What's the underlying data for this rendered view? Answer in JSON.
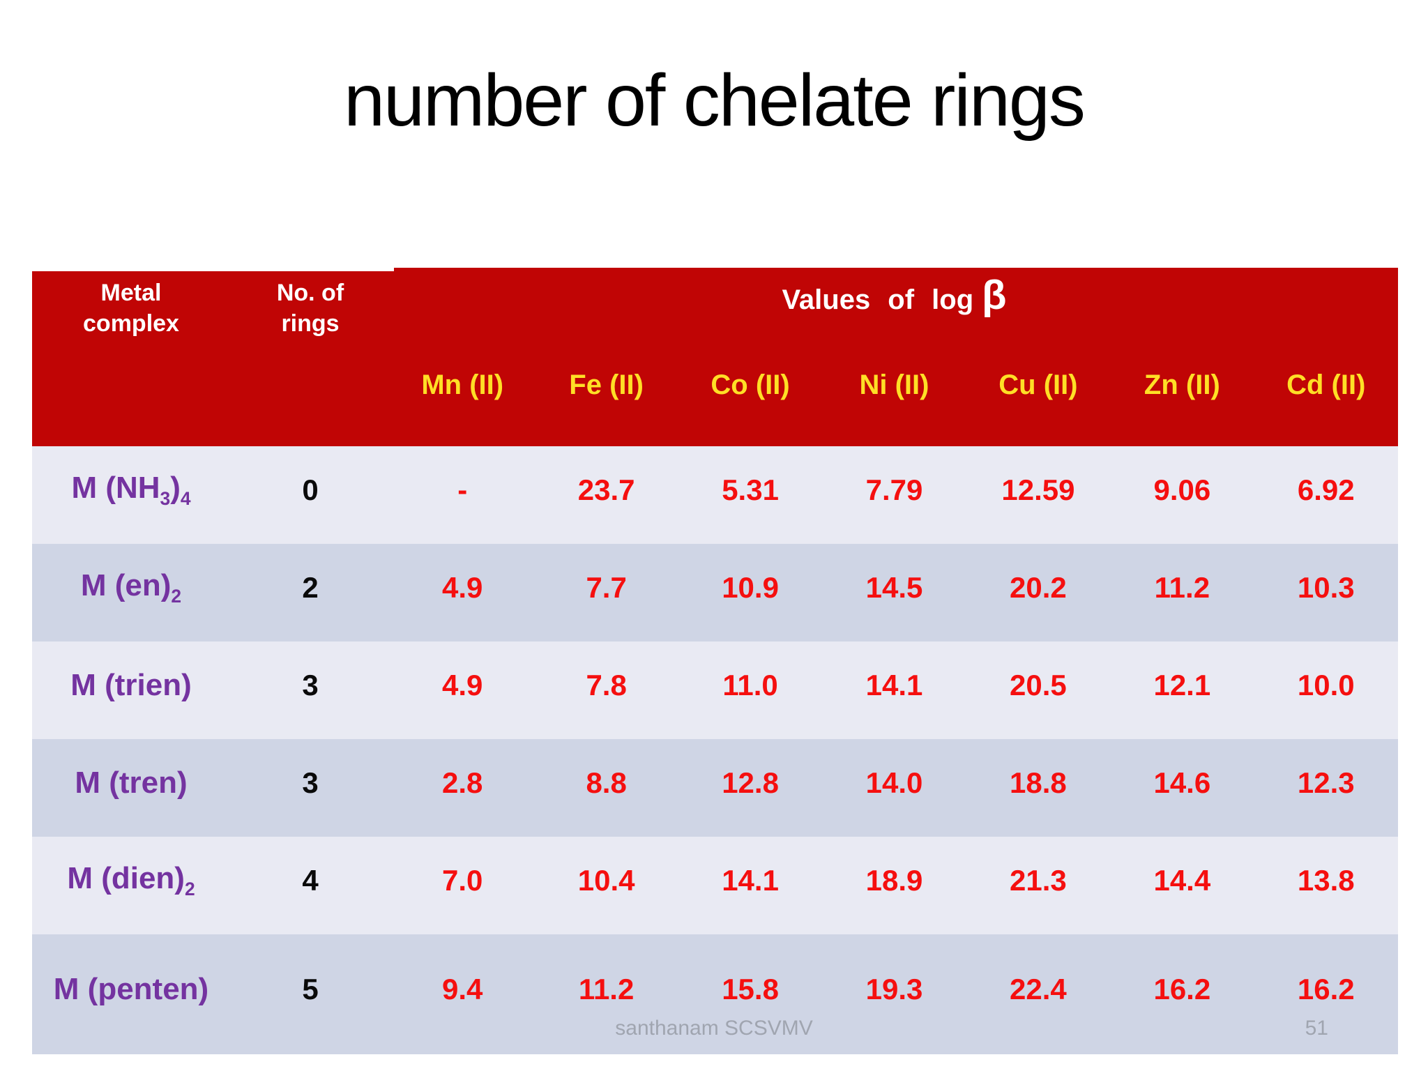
{
  "title": "number of chelate rings",
  "table": {
    "col_headers": [
      "Metal\ncomplex",
      "No. of\nrings"
    ],
    "values_header": {
      "prefix": "Values of log",
      "beta": "β"
    },
    "metal_columns": [
      "Mn (II)",
      "Fe (II)",
      "Co (II)",
      "Ni (II)",
      "Cu (II)",
      "Zn (II)",
      "Cd (II)"
    ],
    "rows": [
      {
        "complex": [
          [
            "M (NH",
            0
          ],
          [
            "3",
            1
          ],
          [
            ")",
            0
          ],
          [
            "4",
            1
          ]
        ],
        "rings": "0",
        "values": [
          "-",
          "23.7",
          "5.31",
          "7.79",
          "12.59",
          "9.06",
          "6.92"
        ]
      },
      {
        "complex": [
          [
            "M (en)",
            0
          ],
          [
            "2",
            1
          ]
        ],
        "rings": "2",
        "values": [
          "4.9",
          "7.7",
          "10.9",
          "14.5",
          "20.2",
          "11.2",
          "10.3"
        ]
      },
      {
        "complex": [
          [
            "M (trien)",
            0
          ]
        ],
        "rings": "3",
        "values": [
          "4.9",
          "7.8",
          "11.0",
          "14.1",
          "20.5",
          "12.1",
          "10.0"
        ]
      },
      {
        "complex": [
          [
            "M (tren)",
            0
          ]
        ],
        "rings": "3",
        "values": [
          "2.8",
          "8.8",
          "12.8",
          "14.0",
          "18.8",
          "14.6",
          "12.3"
        ]
      },
      {
        "complex": [
          [
            "M (dien)",
            0
          ],
          [
            "2",
            1
          ]
        ],
        "rings": "4",
        "values": [
          "7.0",
          "10.4",
          "14.1",
          "18.9",
          "21.3",
          "14.4",
          "13.8"
        ]
      },
      {
        "complex": [
          [
            "M (penten)",
            0
          ]
        ],
        "rings": "5",
        "values": [
          "9.4",
          "11.2",
          "15.8",
          "19.3",
          "22.4",
          "16.2",
          "16.2"
        ]
      }
    ]
  },
  "footer": {
    "credit": "santhanam SCSVMV",
    "page_number": "51"
  },
  "colors": {
    "header_red": "#c00505",
    "metal_yellow": "#ffdf26",
    "complex_purple": "#7433a0",
    "value_red": "#f50f0f",
    "rings_black": "#0a0a0a",
    "row_light": "#e9eaf3",
    "row_dark": "#cfd5e5",
    "footer_gray": "#a0a5b0",
    "title_black": "#000000"
  }
}
